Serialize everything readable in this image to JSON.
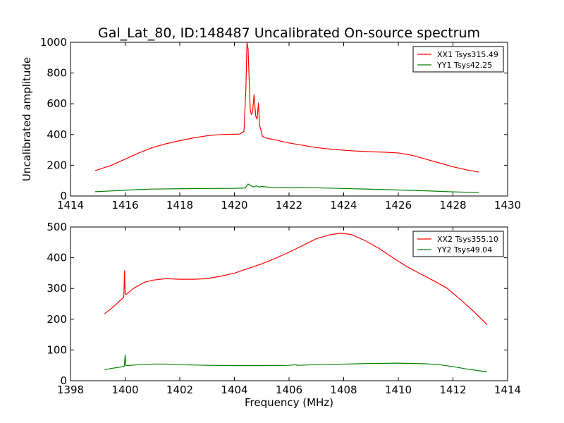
{
  "chart_data": [
    {
      "type": "line",
      "title": "Gal_Lat_80, ID:148487 Uncalibrated On-source spectrum",
      "xlabel": "",
      "ylabel": "Uncalibrated amplitude",
      "xlim": [
        1414,
        1430
      ],
      "ylim": [
        0,
        1000
      ],
      "xticks": [
        1414,
        1416,
        1418,
        1420,
        1422,
        1424,
        1426,
        1428,
        1430
      ],
      "yticks": [
        0,
        200,
        400,
        600,
        800,
        1000
      ],
      "legend_position": "top-right",
      "series": [
        {
          "name": "XX1 Tsys315.49",
          "color": "#ff0000",
          "x": [
            1414.9,
            1415.5,
            1416.0,
            1416.5,
            1417.0,
            1417.5,
            1418.0,
            1418.5,
            1419.0,
            1419.5,
            1420.0,
            1420.2,
            1420.35,
            1420.42,
            1420.46,
            1420.5,
            1420.54,
            1420.58,
            1420.62,
            1420.66,
            1420.72,
            1420.78,
            1420.83,
            1420.88,
            1420.92,
            1420.97,
            1421.02,
            1421.1,
            1421.3,
            1421.5,
            1422.0,
            1422.5,
            1423.0,
            1423.5,
            1424.0,
            1424.5,
            1425.0,
            1425.5,
            1426.0,
            1426.5,
            1427.0,
            1427.5,
            1428.0,
            1428.5,
            1428.95
          ],
          "values": [
            165,
            200,
            240,
            280,
            315,
            340,
            360,
            378,
            392,
            400,
            402,
            403,
            420,
            700,
            1000,
            960,
            760,
            560,
            530,
            540,
            660,
            520,
            500,
            605,
            460,
            430,
            390,
            380,
            372,
            365,
            345,
            330,
            315,
            305,
            298,
            292,
            288,
            285,
            280,
            265,
            240,
            215,
            190,
            170,
            155
          ]
        },
        {
          "name": "YY1 Tsys42.25",
          "color": "#008000",
          "x": [
            1414.9,
            1415.5,
            1416.0,
            1416.5,
            1417.0,
            1418.0,
            1419.0,
            1420.0,
            1420.4,
            1420.5,
            1420.6,
            1420.7,
            1420.8,
            1420.9,
            1421.0,
            1421.5,
            1422.0,
            1423.0,
            1424.0,
            1425.0,
            1426.0,
            1427.0,
            1428.0,
            1428.95
          ],
          "values": [
            28,
            33,
            38,
            42,
            45,
            47,
            49,
            50,
            52,
            78,
            68,
            58,
            66,
            58,
            62,
            53,
            54,
            53,
            49,
            44,
            39,
            34,
            27,
            22
          ]
        }
      ]
    },
    {
      "type": "line",
      "title": "",
      "xlabel": "Frequency (MHz)",
      "ylabel": "",
      "xlim": [
        1398,
        1414
      ],
      "ylim": [
        0,
        500
      ],
      "xticks": [
        1398,
        1400,
        1402,
        1404,
        1406,
        1408,
        1410,
        1412,
        1414
      ],
      "yticks": [
        0,
        100,
        200,
        300,
        400,
        500
      ],
      "legend_position": "top-right",
      "series": [
        {
          "name": "XX2 Tsys355.10",
          "color": "#ff0000",
          "x": [
            1399.25,
            1399.5,
            1399.75,
            1399.95,
            1399.98,
            1400.0,
            1400.03,
            1400.3,
            1400.7,
            1401.0,
            1401.5,
            1402.0,
            1402.5,
            1403.0,
            1403.5,
            1404.0,
            1404.5,
            1405.0,
            1405.5,
            1406.0,
            1406.5,
            1407.0,
            1407.5,
            1407.9,
            1408.3,
            1408.8,
            1409.3,
            1409.8,
            1410.3,
            1410.8,
            1411.3,
            1411.8,
            1412.3,
            1412.8,
            1413.25
          ],
          "values": [
            218,
            235,
            255,
            272,
            358,
            285,
            280,
            300,
            320,
            327,
            332,
            330,
            330,
            332,
            340,
            350,
            365,
            380,
            398,
            418,
            440,
            462,
            475,
            480,
            475,
            455,
            430,
            400,
            372,
            348,
            325,
            300,
            262,
            222,
            182
          ]
        },
        {
          "name": "YY2 Tsys49.04",
          "color": "#008000",
          "x": [
            1399.25,
            1399.5,
            1399.8,
            1399.97,
            1400.0,
            1400.03,
            1400.5,
            1401.0,
            1401.5,
            1402.0,
            1403.0,
            1404.0,
            1405.0,
            1406.0,
            1406.25,
            1406.3,
            1407.0,
            1408.0,
            1409.0,
            1410.0,
            1411.0,
            1411.5,
            1412.0,
            1412.5,
            1413.25
          ],
          "values": [
            36,
            40,
            44,
            47,
            84,
            49,
            52,
            54,
            54,
            52,
            50,
            49,
            49,
            50,
            52,
            50,
            52,
            54,
            56,
            57,
            55,
            52,
            46,
            38,
            29
          ]
        }
      ]
    }
  ]
}
